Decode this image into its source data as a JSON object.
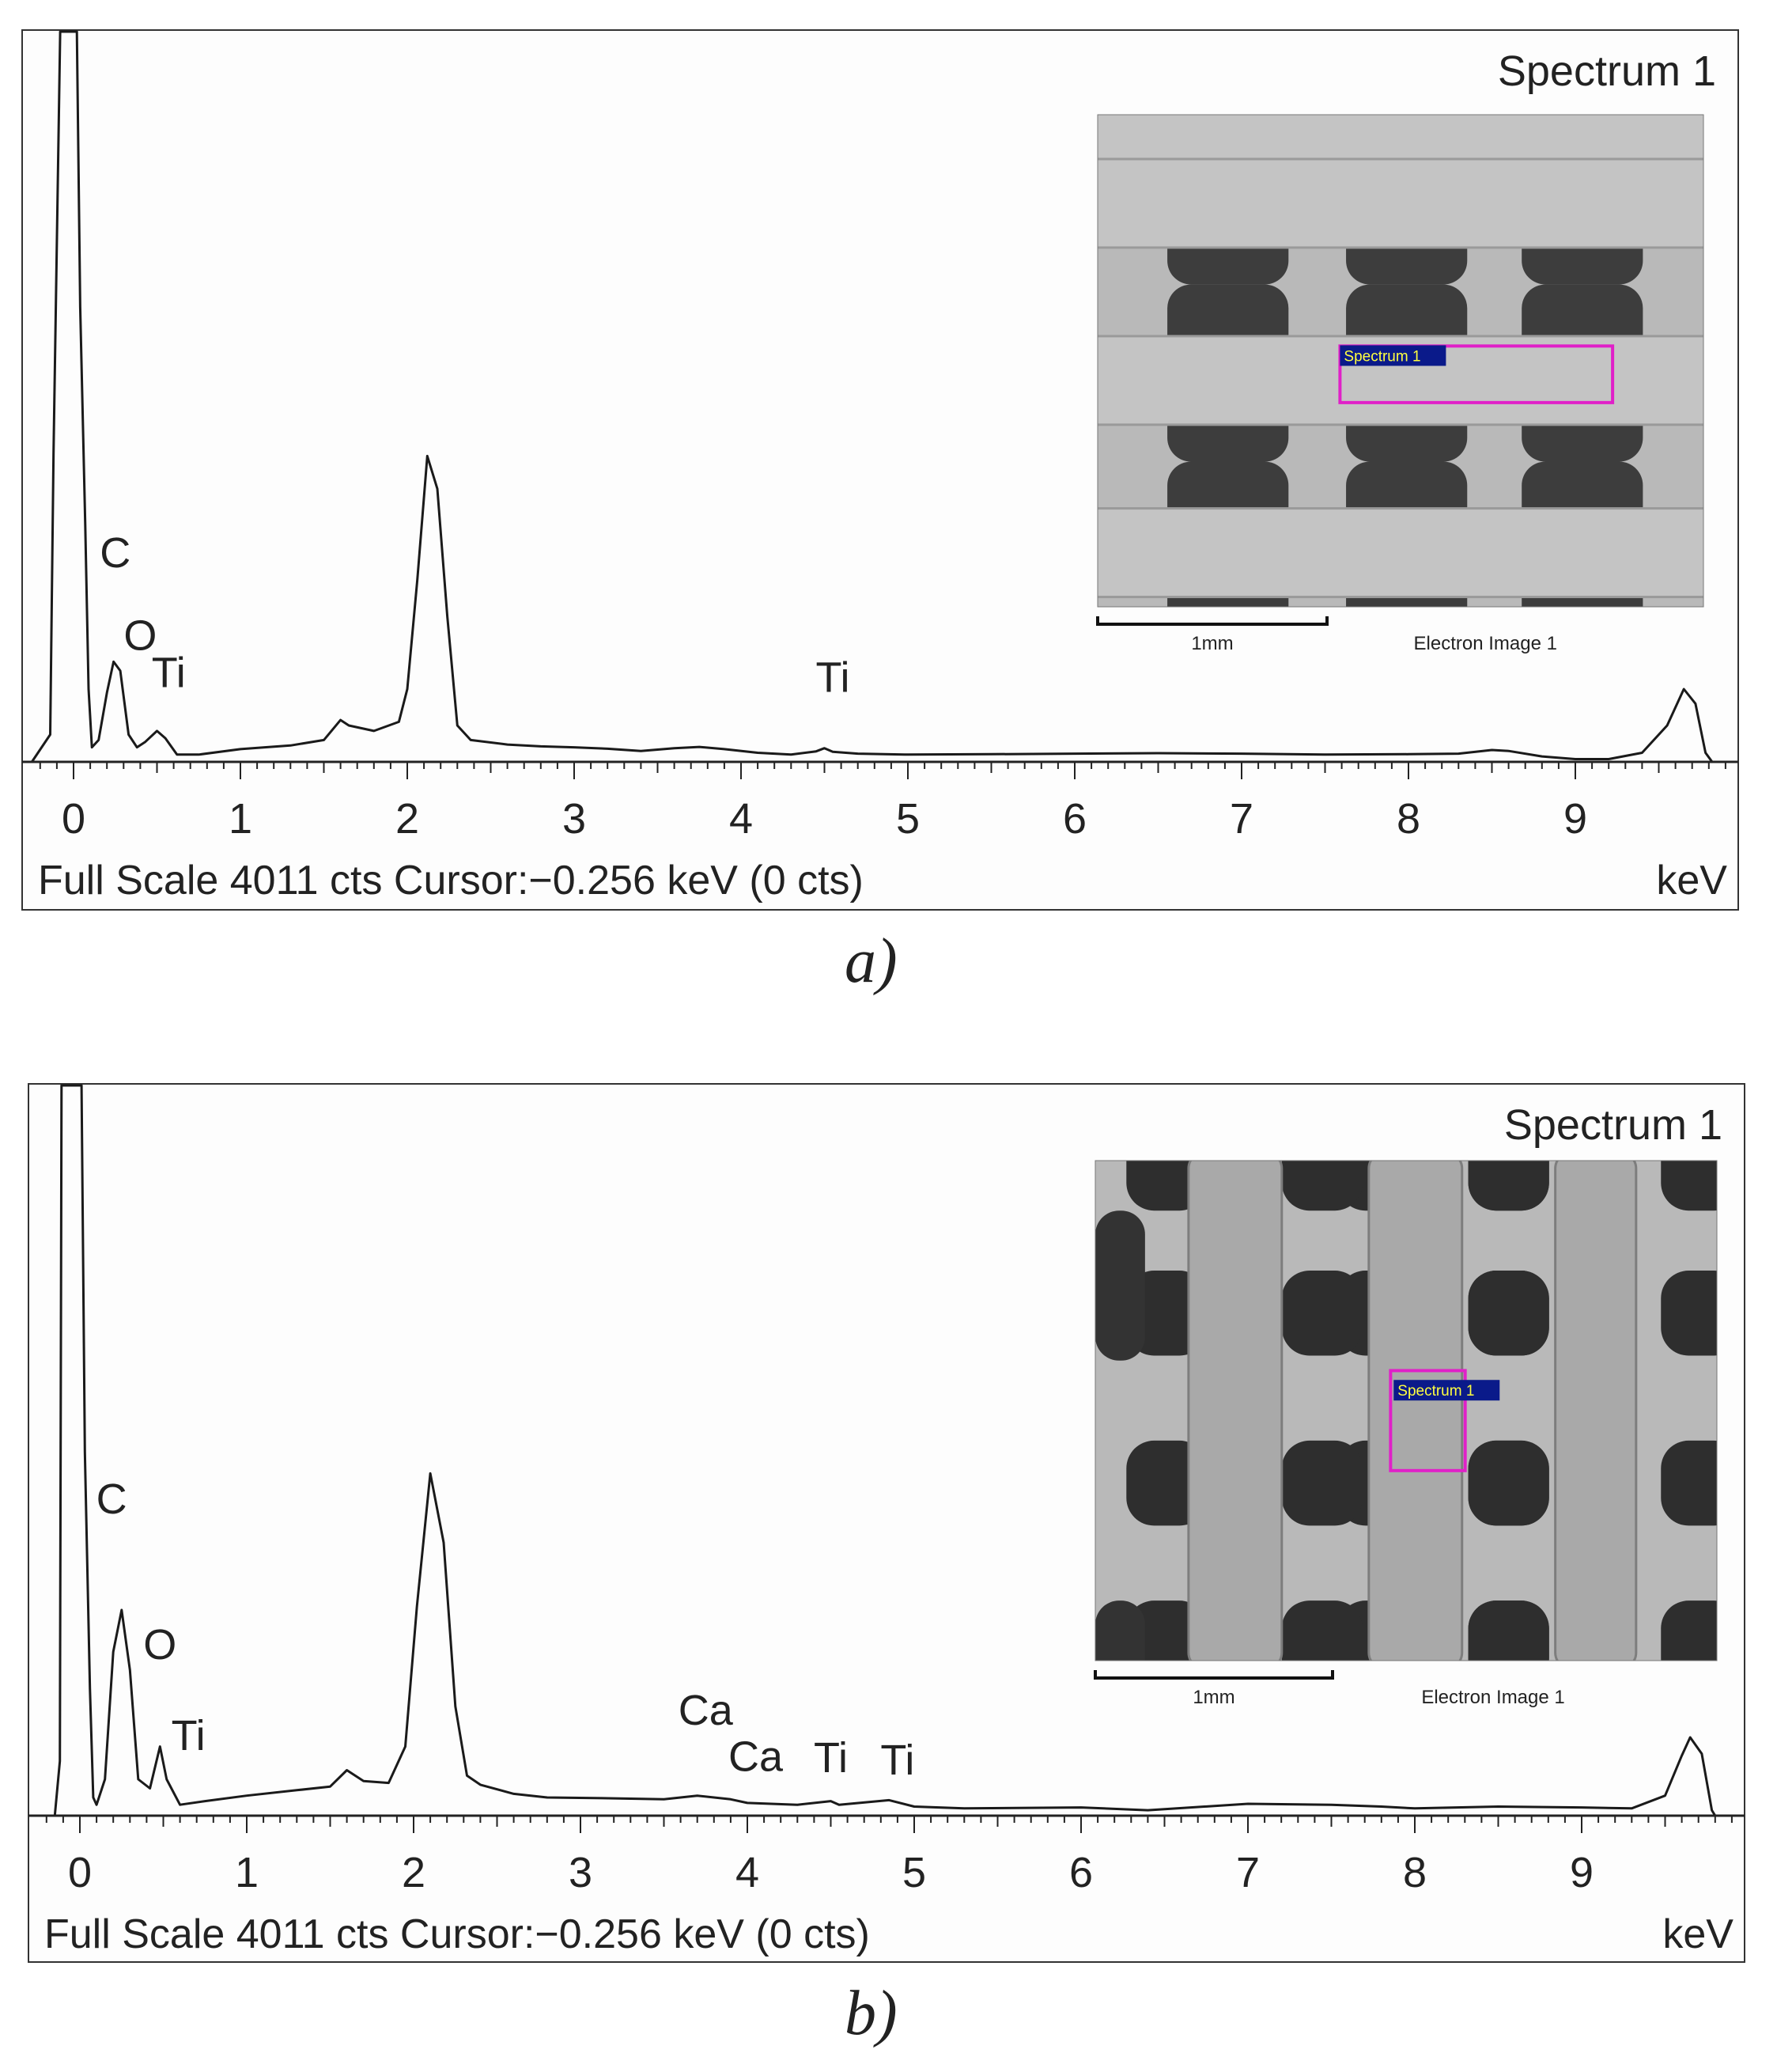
{
  "chart_data": [
    {
      "type": "line",
      "panel_label": "a)",
      "spectrum_label": "Spectrum 1",
      "x_unit": "keV",
      "xlim": [
        -0.3,
        9.9
      ],
      "x_ticks": [
        "0",
        "1",
        "2",
        "3",
        "4",
        "5",
        "6",
        "7",
        "8",
        "9"
      ],
      "footer": "Full Scale 4011 cts Cursor:−0.256 keV (0 cts)",
      "y_full_scale": 4011,
      "series": [
        {
          "points": [
            [
              -0.25,
              0
            ],
            [
              -0.14,
              150
            ],
            [
              -0.12,
              1700
            ],
            [
              -0.08,
              4011
            ],
            [
              -0.05,
              4011
            ],
            [
              0.0,
              4011
            ],
            [
              0.02,
              4011
            ],
            [
              0.04,
              2500
            ],
            [
              0.07,
              1300
            ],
            [
              0.09,
              400
            ],
            [
              0.11,
              80
            ],
            [
              0.15,
              120
            ],
            [
              0.2,
              380
            ],
            [
              0.24,
              550
            ],
            [
              0.28,
              500
            ],
            [
              0.33,
              150
            ],
            [
              0.38,
              80
            ],
            [
              0.43,
              110
            ],
            [
              0.5,
              170
            ],
            [
              0.55,
              130
            ],
            [
              0.62,
              40
            ],
            [
              0.75,
              40
            ],
            [
              1.0,
              70
            ],
            [
              1.3,
              90
            ],
            [
              1.5,
              120
            ],
            [
              1.6,
              230
            ],
            [
              1.65,
              200
            ],
            [
              1.8,
              170
            ],
            [
              1.95,
              220
            ],
            [
              2.0,
              400
            ],
            [
              2.06,
              1000
            ],
            [
              2.12,
              1680
            ],
            [
              2.18,
              1500
            ],
            [
              2.24,
              800
            ],
            [
              2.3,
              200
            ],
            [
              2.38,
              120
            ],
            [
              2.6,
              95
            ],
            [
              2.8,
              85
            ],
            [
              3.0,
              80
            ],
            [
              3.2,
              72
            ],
            [
              3.4,
              60
            ],
            [
              3.6,
              75
            ],
            [
              3.75,
              82
            ],
            [
              3.9,
              70
            ],
            [
              4.1,
              50
            ],
            [
              4.3,
              40
            ],
            [
              4.45,
              58
            ],
            [
              4.5,
              75
            ],
            [
              4.55,
              55
            ],
            [
              4.7,
              45
            ],
            [
              5.0,
              40
            ],
            [
              5.5,
              42
            ],
            [
              6.0,
              45
            ],
            [
              6.5,
              48
            ],
            [
              7.0,
              45
            ],
            [
              7.5,
              40
            ],
            [
              8.0,
              42
            ],
            [
              8.3,
              45
            ],
            [
              8.5,
              65
            ],
            [
              8.6,
              60
            ],
            [
              8.8,
              30
            ],
            [
              9.0,
              15
            ],
            [
              9.2,
              15
            ],
            [
              9.4,
              50
            ],
            [
              9.55,
              200
            ],
            [
              9.65,
              400
            ],
            [
              9.72,
              320
            ],
            [
              9.78,
              50
            ],
            [
              9.82,
              0
            ]
          ]
        }
      ],
      "annotations": [
        {
          "text": "C",
          "x": 0.25,
          "y": 1070
        },
        {
          "text": "O",
          "x": 0.4,
          "y": 615
        },
        {
          "text": "Ti",
          "x": 0.57,
          "y": 410
        },
        {
          "text": "Ti",
          "x": 4.55,
          "y": 385
        }
      ],
      "inset": {
        "scale_label": "1mm",
        "image_label": "Electron Image 1",
        "roi_label": "Spectrum 1",
        "style": "horizontal-strands",
        "roi_color": "#e020c8"
      }
    },
    {
      "type": "line",
      "panel_label": "b)",
      "spectrum_label": "Spectrum 1",
      "x_unit": "keV",
      "xlim": [
        -0.3,
        9.9
      ],
      "x_ticks": [
        "0",
        "1",
        "2",
        "3",
        "4",
        "5",
        "6",
        "7",
        "8",
        "9"
      ],
      "footer": "Full Scale 4011 cts Cursor:−0.256 keV (0 cts)",
      "y_full_scale": 4011,
      "series": [
        {
          "points": [
            [
              -0.15,
              0
            ],
            [
              -0.12,
              300
            ],
            [
              -0.11,
              4011
            ],
            [
              -0.05,
              4011
            ],
            [
              0.0,
              4011
            ],
            [
              0.01,
              4011
            ],
            [
              0.03,
              2000
            ],
            [
              0.06,
              700
            ],
            [
              0.08,
              100
            ],
            [
              0.1,
              60
            ],
            [
              0.15,
              200
            ],
            [
              0.2,
              900
            ],
            [
              0.25,
              1130
            ],
            [
              0.3,
              800
            ],
            [
              0.35,
              200
            ],
            [
              0.42,
              150
            ],
            [
              0.48,
              380
            ],
            [
              0.52,
              200
            ],
            [
              0.6,
              60
            ],
            [
              0.75,
              80
            ],
            [
              1.0,
              110
            ],
            [
              1.3,
              140
            ],
            [
              1.5,
              160
            ],
            [
              1.6,
              250
            ],
            [
              1.7,
              190
            ],
            [
              1.85,
              180
            ],
            [
              1.95,
              380
            ],
            [
              2.02,
              1150
            ],
            [
              2.1,
              1880
            ],
            [
              2.18,
              1500
            ],
            [
              2.25,
              600
            ],
            [
              2.32,
              220
            ],
            [
              2.4,
              170
            ],
            [
              2.6,
              120
            ],
            [
              2.8,
              100
            ],
            [
              3.2,
              95
            ],
            [
              3.5,
              90
            ],
            [
              3.7,
              110
            ],
            [
              3.9,
              90
            ],
            [
              4.0,
              70
            ],
            [
              4.3,
              60
            ],
            [
              4.5,
              80
            ],
            [
              4.55,
              60
            ],
            [
              4.85,
              85
            ],
            [
              5.0,
              50
            ],
            [
              5.3,
              40
            ],
            [
              6.0,
              45
            ],
            [
              6.4,
              30
            ],
            [
              7.0,
              65
            ],
            [
              7.5,
              60
            ],
            [
              7.8,
              50
            ],
            [
              8.0,
              40
            ],
            [
              8.5,
              50
            ],
            [
              9.0,
              45
            ],
            [
              9.3,
              40
            ],
            [
              9.5,
              110
            ],
            [
              9.6,
              330
            ],
            [
              9.65,
              430
            ],
            [
              9.72,
              340
            ],
            [
              9.78,
              30
            ],
            [
              9.8,
              0
            ]
          ]
        }
      ],
      "annotations": [
        {
          "text": "C",
          "x": 0.19,
          "y": 1660
        },
        {
          "text": "O",
          "x": 0.48,
          "y": 860
        },
        {
          "text": "Ti",
          "x": 0.65,
          "y": 360
        },
        {
          "text": "Ca",
          "x": 3.75,
          "y": 500
        },
        {
          "text": "Ca",
          "x": 4.05,
          "y": 245
        },
        {
          "text": "Ti",
          "x": 4.5,
          "y": 240
        },
        {
          "text": "Ti",
          "x": 4.9,
          "y": 225
        }
      ],
      "inset": {
        "scale_label": "1mm",
        "image_label": "Electron Image 1",
        "roi_label": "Spectrum 1",
        "style": "vertical-strands",
        "roi_color": "#e020c8"
      }
    }
  ]
}
